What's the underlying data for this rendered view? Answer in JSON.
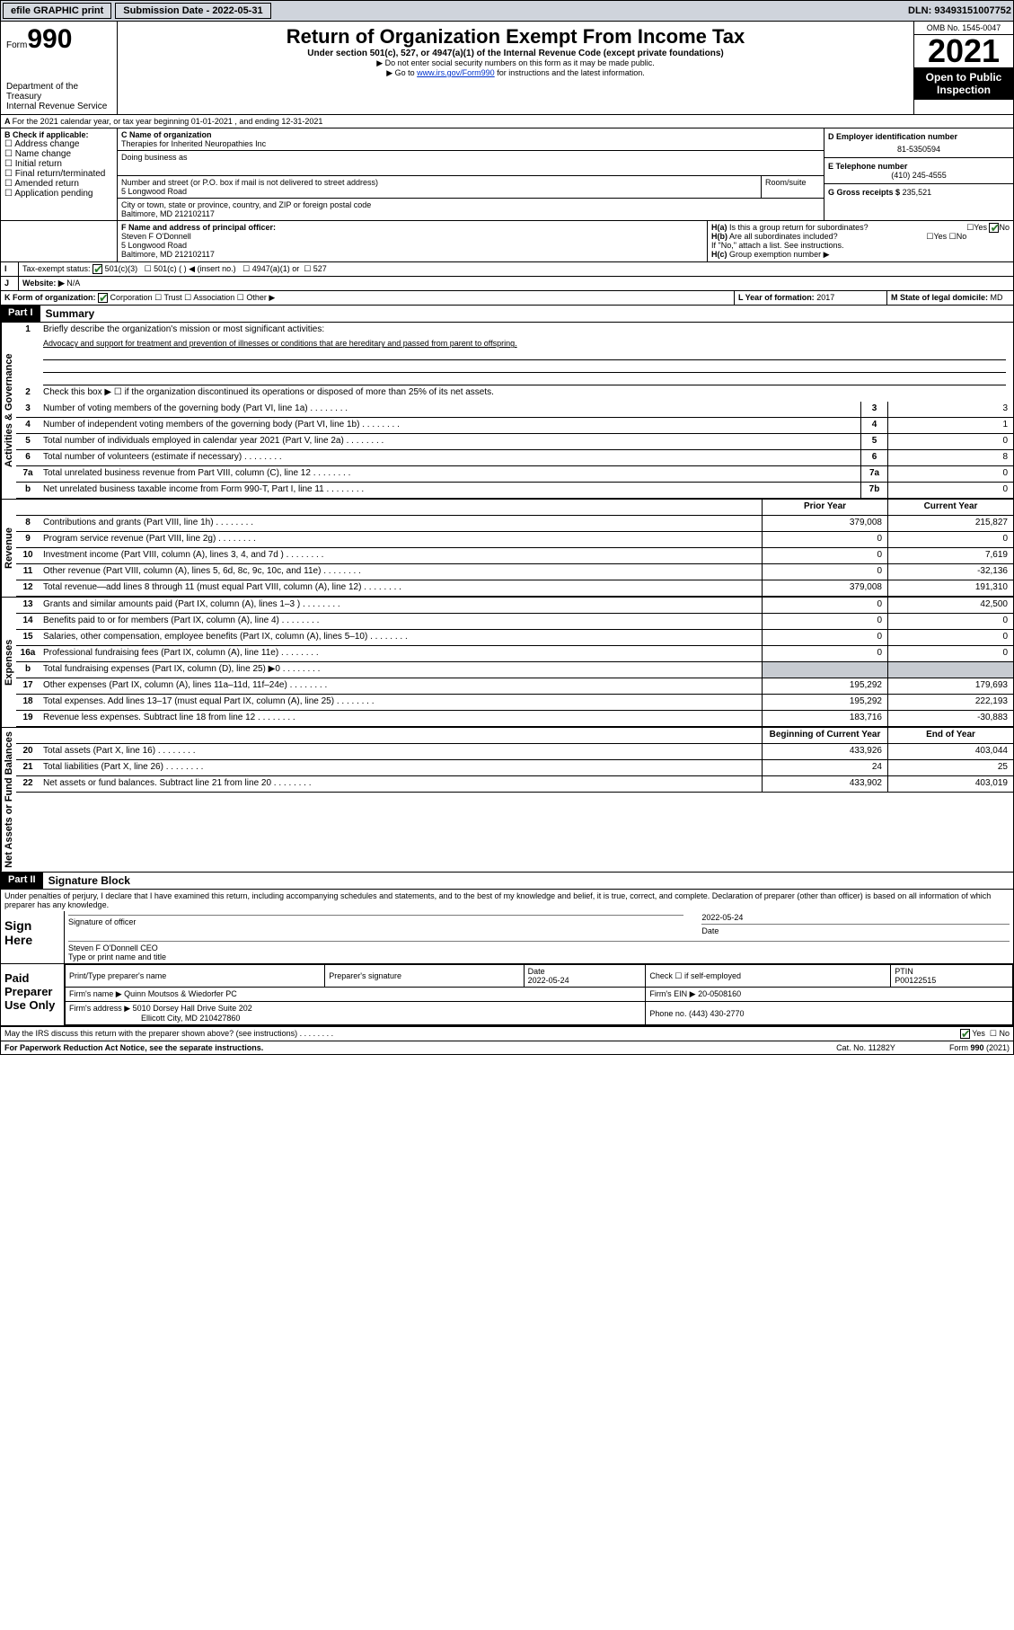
{
  "topbar": {
    "efile": "efile GRAPHIC print",
    "submission_label": "Submission Date - 2022-05-31",
    "dln": "DLN: 93493151007752"
  },
  "header": {
    "form_label": "Form",
    "form_num": "990",
    "dept": "Department of the Treasury",
    "irs": "Internal Revenue Service",
    "title": "Return of Organization Exempt From Income Tax",
    "subtitle": "Under section 501(c), 527, or 4947(a)(1) of the Internal Revenue Code (except private foundations)",
    "note1": "▶ Do not enter social security numbers on this form as it may be made public.",
    "note2_pre": "▶ Go to ",
    "note2_link": "www.irs.gov/Form990",
    "note2_post": " for instructions and the latest information.",
    "omb": "OMB No. 1545-0047",
    "year": "2021",
    "open": "Open to Public Inspection"
  },
  "A": {
    "text": "For the 2021 calendar year, or tax year beginning 01-01-2021    , and ending 12-31-2021"
  },
  "B": {
    "label": "B Check if applicable:",
    "items": [
      "Address change",
      "Name change",
      "Initial return",
      "Final return/terminated",
      "Amended return",
      "Application pending"
    ]
  },
  "C": {
    "name_label": "C Name of organization",
    "name": "Therapies for Inherited Neuropathies Inc",
    "dba_label": "Doing business as",
    "street_label": "Number and street (or P.O. box if mail is not delivered to street address)",
    "room_label": "Room/suite",
    "street": "5 Longwood Road",
    "city_label": "City or town, state or province, country, and ZIP or foreign postal code",
    "city": "Baltimore, MD  212102117"
  },
  "D": {
    "label": "D Employer identification number",
    "value": "81-5350594"
  },
  "E": {
    "label": "E Telephone number",
    "value": "(410) 245-4555"
  },
  "G": {
    "label": "G Gross receipts $",
    "value": "235,521"
  },
  "F": {
    "label": "F Name and address of principal officer:",
    "name": "Steven F O'Donnell",
    "street": "5 Longwood Road",
    "city": "Baltimore, MD  212102117"
  },
  "H": {
    "a": "Is this a group return for subordinates?",
    "b": "Are all subordinates included?",
    "note": "If \"No,\" attach a list. See instructions.",
    "c": "Group exemption number ▶"
  },
  "I": {
    "label": "Tax-exempt status:",
    "opts": [
      "501(c)(3)",
      "501(c) (  ) ◀ (insert no.)",
      "4947(a)(1) or",
      "527"
    ]
  },
  "J": {
    "label": "Website: ▶",
    "value": "N/A"
  },
  "K": {
    "label": "K Form of organization:",
    "opts": [
      "Corporation",
      "Trust",
      "Association",
      "Other ▶"
    ]
  },
  "L": {
    "label": "L Year of formation:",
    "value": "2017"
  },
  "M": {
    "label": "M State of legal domicile:",
    "value": "MD"
  },
  "part1": {
    "header": "Part I",
    "title": "Summary",
    "line1": "Briefly describe the organization's mission or most significant activities:",
    "mission": "Advocacy and support for treatment and prevention of illnesses or conditions that are hereditary and passed from parent to offspring.",
    "line2": "Check this box ▶ ☐ if the organization discontinued its operations or disposed of more than 25% of its net assets.",
    "vert_ag": "Activities & Governance",
    "vert_rev": "Revenue",
    "vert_exp": "Expenses",
    "vert_net": "Net Assets or Fund Balances",
    "lines_gov": [
      {
        "n": "3",
        "d": "Number of voting members of the governing body (Part VI, line 1a)",
        "box": "3",
        "v": "3"
      },
      {
        "n": "4",
        "d": "Number of independent voting members of the governing body (Part VI, line 1b)",
        "box": "4",
        "v": "1"
      },
      {
        "n": "5",
        "d": "Total number of individuals employed in calendar year 2021 (Part V, line 2a)",
        "box": "5",
        "v": "0"
      },
      {
        "n": "6",
        "d": "Total number of volunteers (estimate if necessary)",
        "box": "6",
        "v": "8"
      },
      {
        "n": "7a",
        "d": "Total unrelated business revenue from Part VIII, column (C), line 12",
        "box": "7a",
        "v": "0"
      },
      {
        "n": "b",
        "d": "Net unrelated business taxable income from Form 990-T, Part I, line 11",
        "box": "7b",
        "v": "0"
      }
    ],
    "col_prior": "Prior Year",
    "col_current": "Current Year",
    "col_begin": "Beginning of Current Year",
    "col_end": "End of Year",
    "lines_rev": [
      {
        "n": "8",
        "d": "Contributions and grants (Part VIII, line 1h)",
        "p": "379,008",
        "c": "215,827"
      },
      {
        "n": "9",
        "d": "Program service revenue (Part VIII, line 2g)",
        "p": "0",
        "c": "0"
      },
      {
        "n": "10",
        "d": "Investment income (Part VIII, column (A), lines 3, 4, and 7d )",
        "p": "0",
        "c": "7,619"
      },
      {
        "n": "11",
        "d": "Other revenue (Part VIII, column (A), lines 5, 6d, 8c, 9c, 10c, and 11e)",
        "p": "0",
        "c": "-32,136"
      },
      {
        "n": "12",
        "d": "Total revenue—add lines 8 through 11 (must equal Part VIII, column (A), line 12)",
        "p": "379,008",
        "c": "191,310"
      }
    ],
    "lines_exp": [
      {
        "n": "13",
        "d": "Grants and similar amounts paid (Part IX, column (A), lines 1–3 )",
        "p": "0",
        "c": "42,500"
      },
      {
        "n": "14",
        "d": "Benefits paid to or for members (Part IX, column (A), line 4)",
        "p": "0",
        "c": "0"
      },
      {
        "n": "15",
        "d": "Salaries, other compensation, employee benefits (Part IX, column (A), lines 5–10)",
        "p": "0",
        "c": "0"
      },
      {
        "n": "16a",
        "d": "Professional fundraising fees (Part IX, column (A), line 11e)",
        "p": "0",
        "c": "0"
      },
      {
        "n": "b",
        "d": "Total fundraising expenses (Part IX, column (D), line 25) ▶0",
        "p": "",
        "c": "",
        "shade": true
      },
      {
        "n": "17",
        "d": "Other expenses (Part IX, column (A), lines 11a–11d, 11f–24e)",
        "p": "195,292",
        "c": "179,693"
      },
      {
        "n": "18",
        "d": "Total expenses. Add lines 13–17 (must equal Part IX, column (A), line 25)",
        "p": "195,292",
        "c": "222,193"
      },
      {
        "n": "19",
        "d": "Revenue less expenses. Subtract line 18 from line 12",
        "p": "183,716",
        "c": "-30,883"
      }
    ],
    "lines_net": [
      {
        "n": "20",
        "d": "Total assets (Part X, line 16)",
        "p": "433,926",
        "c": "403,044"
      },
      {
        "n": "21",
        "d": "Total liabilities (Part X, line 26)",
        "p": "24",
        "c": "25"
      },
      {
        "n": "22",
        "d": "Net assets or fund balances. Subtract line 21 from line 20",
        "p": "433,902",
        "c": "403,019"
      }
    ]
  },
  "part2": {
    "header": "Part II",
    "title": "Signature Block",
    "decl": "Under penalties of perjury, I declare that I have examined this return, including accompanying schedules and statements, and to the best of my knowledge and belief, it is true, correct, and complete. Declaration of preparer (other than officer) is based on all information of which preparer has any knowledge.",
    "sign_here": "Sign Here",
    "sig_officer": "Signature of officer",
    "sig_date": "2022-05-24",
    "date_label": "Date",
    "officer_name": "Steven F O'Donnell CEO",
    "type_name": "Type or print name and title",
    "paid": "Paid Preparer Use Only",
    "prep_name_label": "Print/Type preparer's name",
    "prep_sig_label": "Preparer's signature",
    "prep_date": "2022-05-24",
    "check_self": "Check ☐ if self-employed",
    "ptin_label": "PTIN",
    "ptin": "P00122515",
    "firm_name_label": "Firm's name    ▶",
    "firm_name": "Quinn Moutsos & Wiedorfer PC",
    "firm_ein_label": "Firm's EIN ▶",
    "firm_ein": "20-0508160",
    "firm_addr_label": "Firm's address ▶",
    "firm_addr1": "5010 Dorsey Hall Drive Suite 202",
    "firm_addr2": "Ellicott City, MD  210427860",
    "phone_label": "Phone no.",
    "phone": "(443) 430-2770"
  },
  "footer": {
    "discuss": "May the IRS discuss this return with the preparer shown above? (see instructions)",
    "yes": "Yes",
    "no": "No",
    "paperwork": "For Paperwork Reduction Act Notice, see the separate instructions.",
    "cat": "Cat. No. 11282Y",
    "form": "Form 990 (2021)"
  }
}
